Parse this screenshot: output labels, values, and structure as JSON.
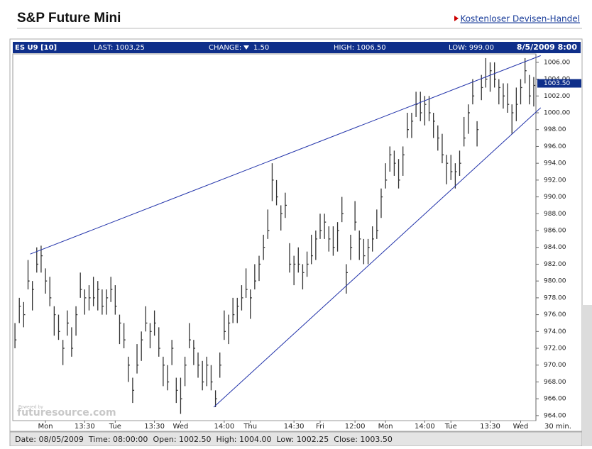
{
  "chart_data": {
    "type": "ohlc",
    "title": "S&P Future Mini",
    "link_text": "Kostenloser Devisen-Handel",
    "header": {
      "symbol": "ES U9 [10]",
      "last": "LAST: 1003.25",
      "change_label": "CHANGE:",
      "change": "1.50",
      "high": "HIGH: 1006.50",
      "low": "LOW: 999.00",
      "datetime": "8/5/2009 8:00"
    },
    "watermark": {
      "small": "Powered by",
      "brand": "futuresource.com"
    },
    "interval_label": "30 min.",
    "footer": [
      "Date: 08/05/2009",
      "Time: 08:00:00",
      "Open: 1002.50",
      "High: 1004.00",
      "Low: 1002.25",
      "Close: 1003.50"
    ],
    "bar_color": "#333333",
    "trend_color": "#2233aa",
    "xlim": [
      -0.5,
      119.5
    ],
    "ylim": [
      963.4,
      1007
    ],
    "xticks": [
      {
        "value": 7,
        "label": "Mon"
      },
      {
        "value": 16,
        "label": "13:30"
      },
      {
        "value": 23,
        "label": "Tue"
      },
      {
        "value": 32,
        "label": "13:30"
      },
      {
        "value": 38,
        "label": "Wed"
      },
      {
        "value": 48,
        "label": "14:00"
      },
      {
        "value": 54,
        "label": "Thu"
      },
      {
        "value": 64,
        "label": "14:30"
      },
      {
        "value": 70,
        "label": "Fri"
      },
      {
        "value": 78,
        "label": "12:00"
      },
      {
        "value": 85,
        "label": "Mon"
      },
      {
        "value": 94,
        "label": "14:00"
      },
      {
        "value": 100,
        "label": "Tue"
      },
      {
        "value": 109,
        "label": "13:30"
      },
      {
        "value": 116,
        "label": "Wed"
      }
    ],
    "yticks": [
      {
        "value": 1006,
        "label": "1006.00"
      },
      {
        "value": 1004,
        "label": "1004.00"
      },
      {
        "value": 1002,
        "label": "1002.00"
      },
      {
        "value": 1000,
        "label": "1000.00"
      },
      {
        "value": 998,
        "label": "998.00"
      },
      {
        "value": 996,
        "label": "996.00"
      },
      {
        "value": 994,
        "label": "994.00"
      },
      {
        "value": 992,
        "label": "992.00"
      },
      {
        "value": 990,
        "label": "990.00"
      },
      {
        "value": 988,
        "label": "988.00"
      },
      {
        "value": 986,
        "label": "986.00"
      },
      {
        "value": 984,
        "label": "984.00"
      },
      {
        "value": 982,
        "label": "982.00"
      },
      {
        "value": 980,
        "label": "980.00"
      },
      {
        "value": 978,
        "label": "978.00"
      },
      {
        "value": 976,
        "label": "976.00"
      },
      {
        "value": 974,
        "label": "974.00"
      },
      {
        "value": 972,
        "label": "972.00"
      },
      {
        "value": 970,
        "label": "970.00"
      },
      {
        "value": 968,
        "label": "968.00"
      },
      {
        "value": 966,
        "label": "966.00"
      },
      {
        "value": 964,
        "label": "964.00"
      }
    ],
    "last_marker": {
      "value": 1003.5,
      "label": "1003.50"
    },
    "high": [
      975,
      978,
      977.5,
      982.5,
      980,
      984,
      984.2,
      981.5,
      980.5,
      977,
      976,
      973,
      976.5,
      974.5,
      977,
      981,
      979,
      979.5,
      980.5,
      980,
      979,
      979,
      980.5,
      979.5,
      976,
      975,
      971,
      968.5,
      972.5,
      974,
      977,
      975,
      976.5,
      974.5,
      971,
      970,
      973,
      968.5,
      968.5,
      971,
      975,
      973,
      971.5,
      970.5,
      971,
      970,
      967,
      971.5,
      976.5,
      976,
      978,
      978,
      979.5,
      981.5,
      979,
      982,
      983,
      985.5,
      988.5,
      994,
      992,
      989,
      990.5,
      984.5,
      983,
      984,
      982,
      983.5,
      985.5,
      986,
      988,
      988,
      986.5,
      986.5,
      987,
      990,
      982,
      985.5,
      989.5,
      986,
      985,
      985,
      986.5,
      988.5,
      991,
      994,
      996,
      995.5,
      994.5,
      996,
      1000,
      1000,
      1002.5,
      1002.5,
      1002,
      1002,
      1000,
      998.5,
      997.5,
      995,
      995,
      994,
      995.5,
      999.5,
      1001,
      1004,
      999,
      1004.5,
      1006.5,
      1006,
      1006,
      1004,
      1003.5,
      1003.5,
      1001,
      1003,
      1004,
      1006.5,
      1004.5,
      1004.25
    ],
    "low": [
      972,
      975,
      974.5,
      979,
      976.5,
      981,
      981,
      978.5,
      977,
      973.5,
      973,
      970,
      973.5,
      971,
      973.5,
      978,
      976,
      976.5,
      977,
      976.5,
      976,
      976,
      977.5,
      976,
      972.5,
      972,
      968,
      965.5,
      969,
      970.5,
      974,
      972,
      973.5,
      971,
      967.5,
      967,
      970,
      965.5,
      964.2,
      967.5,
      972,
      970,
      968.5,
      967,
      967.5,
      967,
      965,
      968.5,
      973,
      972.5,
      975,
      975,
      976.5,
      978,
      975.5,
      979,
      980,
      982.5,
      985,
      989.5,
      989,
      986,
      987.5,
      981,
      979.5,
      981,
      979,
      980.5,
      982,
      982.5,
      985,
      985,
      983.5,
      983,
      983.5,
      987,
      978.5,
      982.5,
      986,
      982.5,
      982,
      982,
      983.5,
      985,
      987.5,
      991,
      993,
      992.5,
      991,
      992.5,
      997,
      997,
      999.5,
      999,
      998.5,
      999,
      997,
      995.5,
      994,
      991.5,
      992,
      991,
      992.5,
      996,
      997.5,
      1001,
      996,
      1001.5,
      1003,
      1002.5,
      1003,
      1001,
      1000.5,
      1000,
      997.5,
      999,
      1001,
      1003.5,
      1001,
      1000.75
    ],
    "close": [
      973,
      977,
      976,
      980,
      979,
      982,
      983,
      980,
      978,
      976,
      974,
      972,
      975,
      972,
      976,
      979,
      978,
      978,
      978,
      979,
      977,
      978,
      979,
      977,
      975,
      973,
      970,
      967,
      970,
      973,
      975,
      974,
      975,
      972,
      970,
      968,
      972,
      967,
      966,
      970,
      973,
      972,
      970,
      968,
      970,
      968,
      966,
      970,
      974,
      975,
      976,
      977,
      978,
      979,
      978,
      980,
      982,
      984,
      986,
      992,
      990,
      988,
      989,
      982,
      982,
      982,
      981,
      982,
      983,
      985,
      986,
      987,
      985,
      984,
      986,
      988,
      981,
      984,
      987,
      985,
      983,
      984,
      985,
      986,
      990,
      992,
      995,
      994,
      992,
      995,
      998,
      999,
      1001,
      1000,
      1001,
      1000,
      999,
      997,
      995,
      994,
      993,
      993,
      994,
      997,
      1000,
      1002,
      998,
      1003,
      1004,
      1005,
      1004,
      1003,
      1002,
      1001,
      1000,
      1001,
      1003,
      1005,
      1002,
      1003.25
    ],
    "trendlines": [
      {
        "x": [
          3.5,
          120.6
        ],
        "y": [
          983.2,
          1006.8
        ]
      },
      {
        "x": [
          45.6,
          120.6
        ],
        "y": [
          965,
          1000.6
        ]
      }
    ]
  }
}
